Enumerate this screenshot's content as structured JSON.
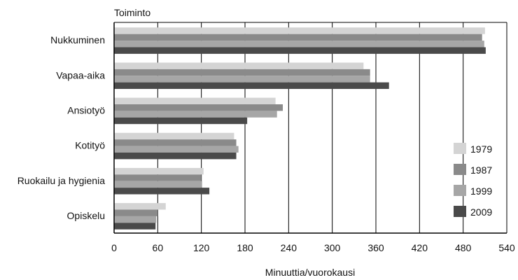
{
  "chart_data": {
    "type": "bar",
    "orientation": "horizontal",
    "title": "Toiminto",
    "xlabel": "Minuuttia/vuorokausi",
    "ylabel": "Toiminto",
    "xlim": [
      0,
      540
    ],
    "xticks": [
      0,
      60,
      120,
      180,
      240,
      300,
      360,
      420,
      480,
      540
    ],
    "categories": [
      "Nukkuminen",
      "Vapaa-aika",
      "Ansiotyö",
      "Kotityö",
      "Ruokailu ja hygienia",
      "Opiskelu"
    ],
    "series": [
      {
        "name": "1979",
        "color": "#d4d4d4",
        "values": [
          510,
          343,
          222,
          165,
          123,
          71
        ]
      },
      {
        "name": "1987",
        "color": "#8a8a8a",
        "values": [
          506,
          352,
          232,
          168,
          120,
          60
        ]
      },
      {
        "name": "1999",
        "color": "#a6a6a6",
        "values": [
          509,
          352,
          224,
          171,
          121,
          58
        ]
      },
      {
        "name": "2009",
        "color": "#4a4a4a",
        "values": [
          511,
          378,
          183,
          168,
          131,
          57
        ]
      }
    ],
    "grid": "vertical",
    "legend_position": "right"
  }
}
